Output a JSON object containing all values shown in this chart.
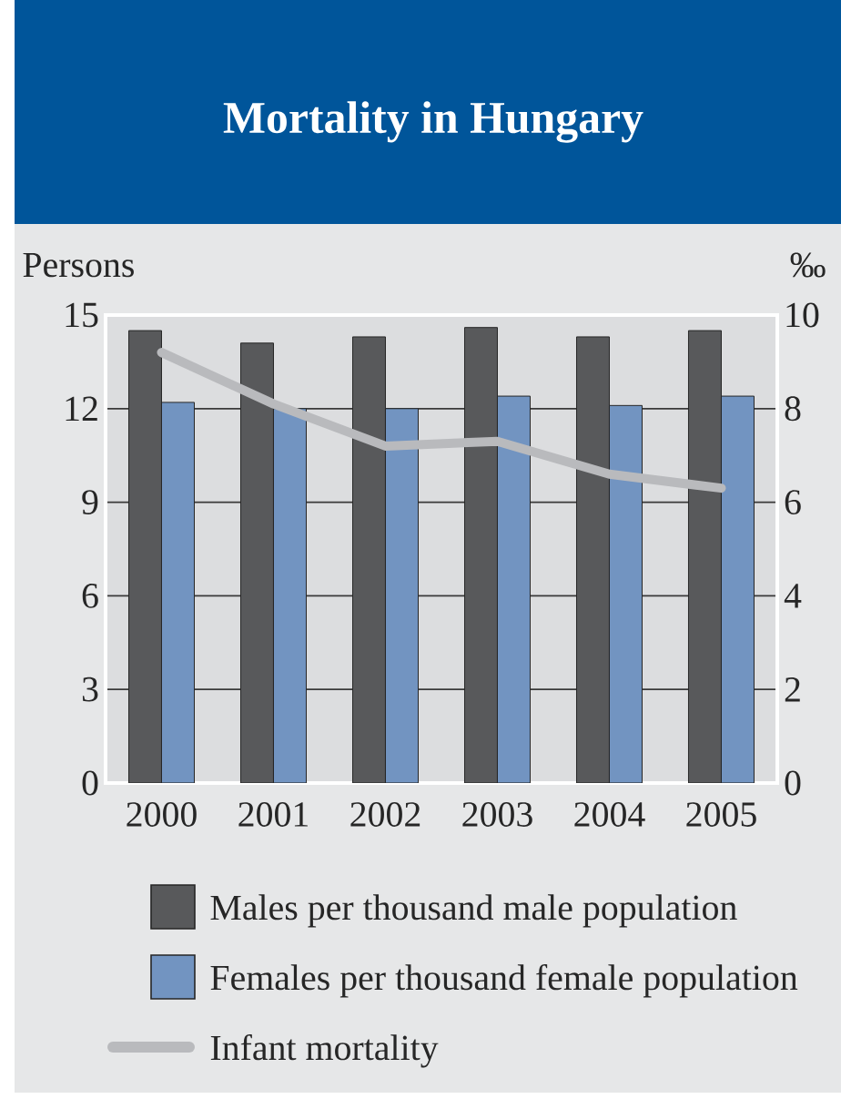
{
  "chart_data": {
    "type": "bar",
    "title": "Mortality in Hungary",
    "ylabel": "Persons",
    "y2label": "‰",
    "categories": [
      "2000",
      "2001",
      "2002",
      "2003",
      "2004",
      "2005"
    ],
    "series": [
      {
        "name": "Males per thousand male population",
        "color": "#58595b",
        "values": [
          14.5,
          14.1,
          14.3,
          14.6,
          14.3,
          14.5
        ]
      },
      {
        "name": "Females per thousand female population",
        "color": "#7294c1",
        "values": [
          12.2,
          12.0,
          12.0,
          12.4,
          12.1,
          12.4
        ]
      },
      {
        "name": "Infant mortality",
        "type": "line",
        "axis": "y2",
        "color": "#b9babd",
        "values": [
          9.2,
          8.1,
          7.2,
          7.3,
          6.6,
          6.3
        ]
      }
    ],
    "ylim": [
      0,
      15
    ],
    "yticks": [
      0,
      3,
      6,
      9,
      12,
      15
    ],
    "y2lim": [
      0,
      10
    ],
    "y2ticks": [
      0,
      2,
      4,
      6,
      8,
      10
    ],
    "grid": "y",
    "legend": "bottom"
  }
}
